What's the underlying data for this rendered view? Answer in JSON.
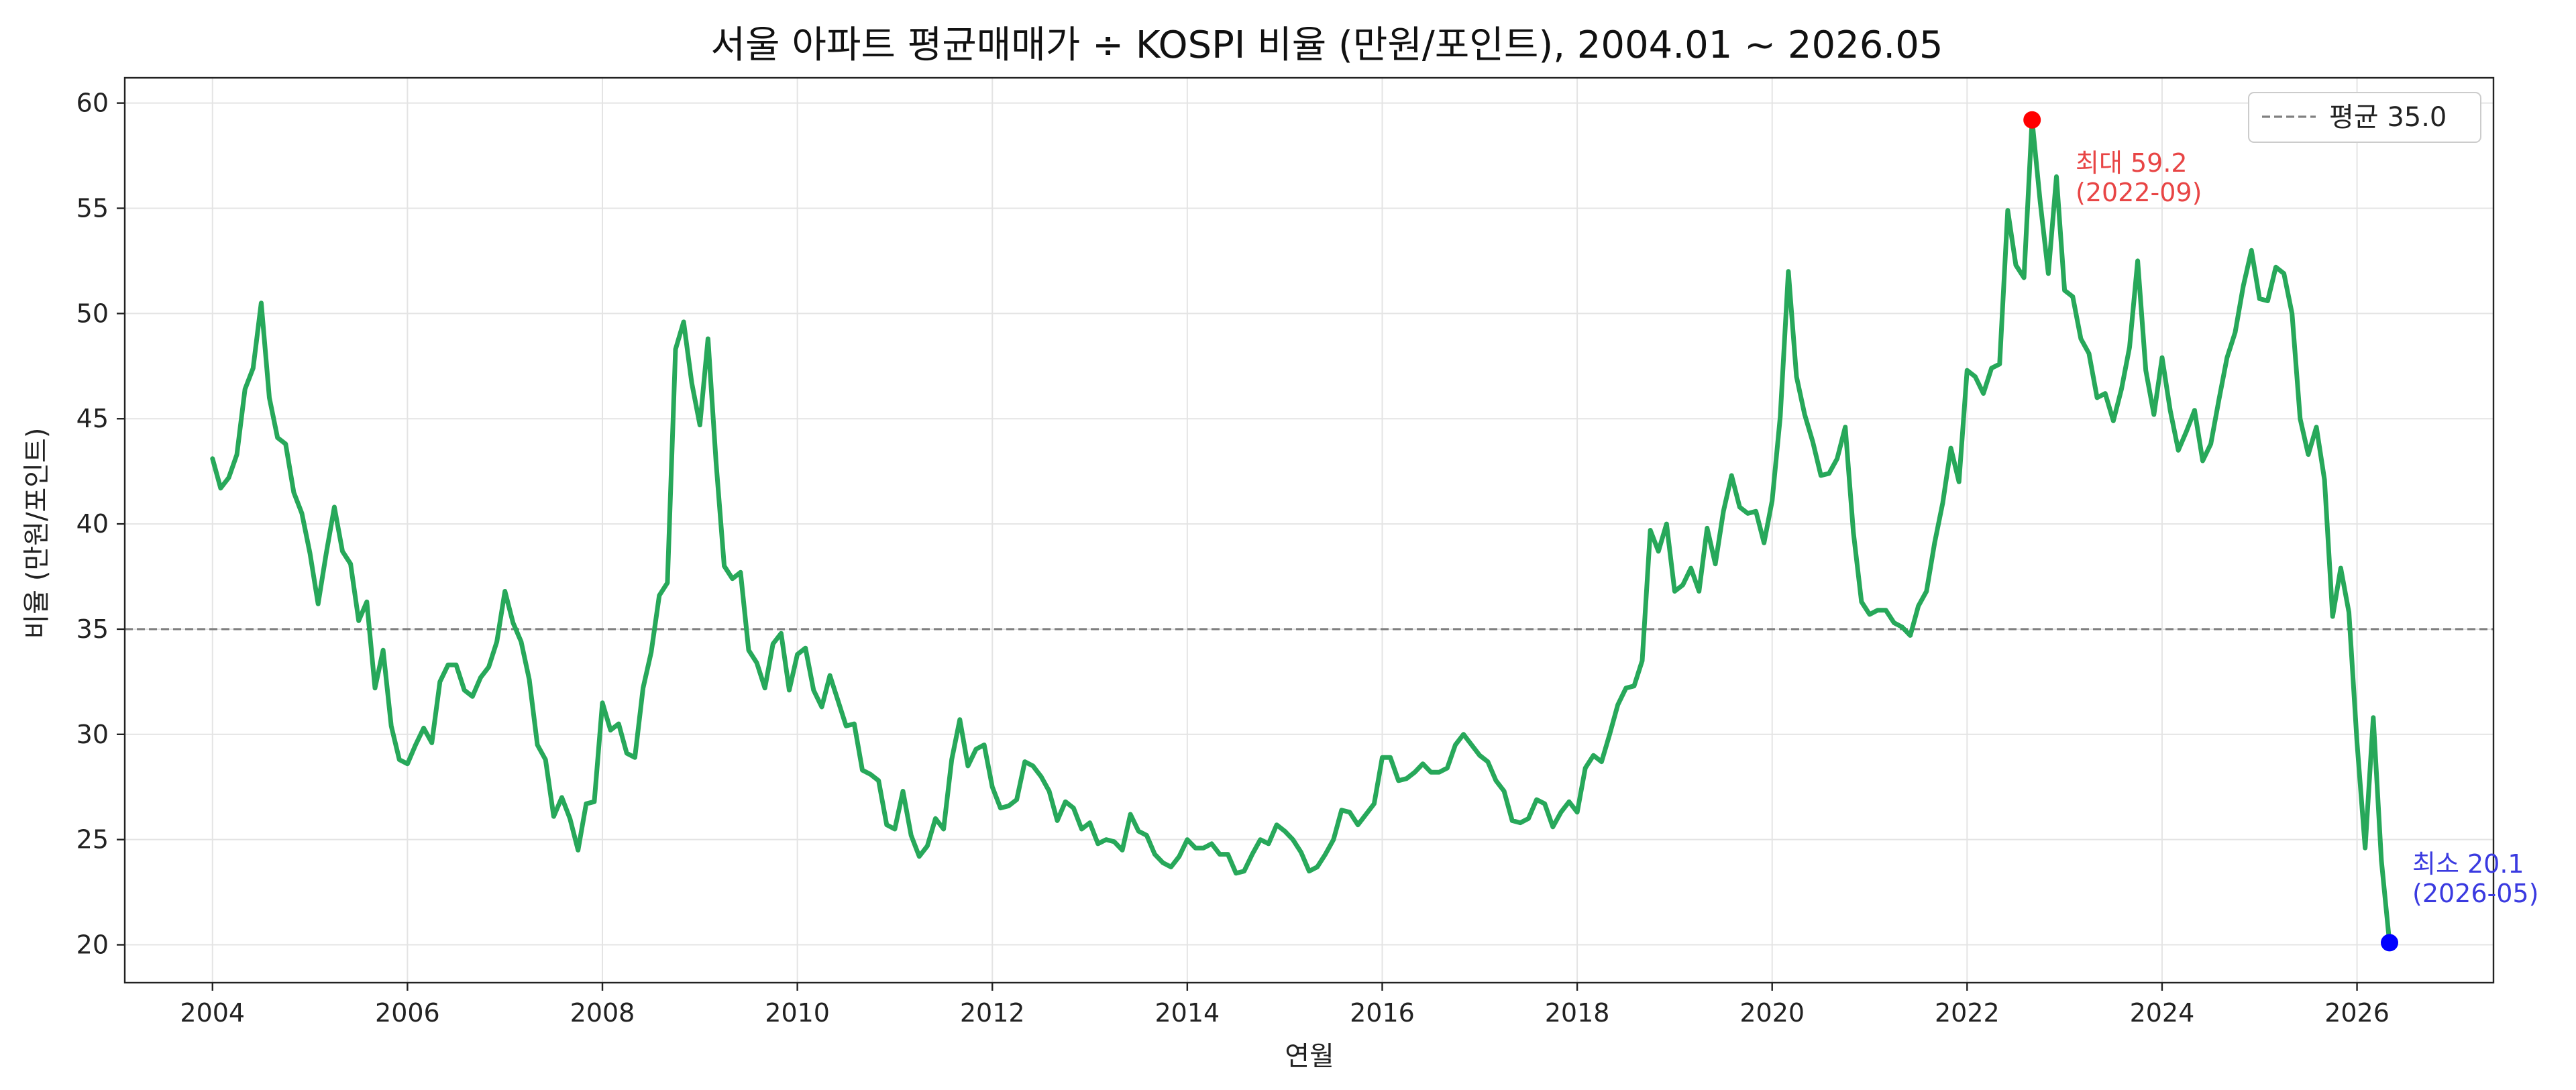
{
  "chart_data": {
    "type": "line",
    "title": "서울 아파트 평균매매가 ÷ KOSPI 비율 (만원/포인트), 2004.01 ~ 2026.05",
    "xlabel": "연월",
    "ylabel": "비율 (만원/포인트)",
    "xlim": [
      2003.1,
      2027.4
    ],
    "ylim": [
      18.2,
      61.2
    ],
    "x_ticks": [
      "2004",
      "2006",
      "2008",
      "2010",
      "2012",
      "2014",
      "2016",
      "2018",
      "2020",
      "2022",
      "2024",
      "2026"
    ],
    "y_ticks": [
      20,
      25,
      30,
      35,
      40,
      45,
      50,
      55,
      60
    ],
    "grid": true,
    "legend_placement": "top-right",
    "reference_line": {
      "label": "평균 35.0",
      "value": 35.0
    },
    "max_point": {
      "x": "2022-09",
      "value": 59.2,
      "label": "최대 59.2",
      "date_label": "(2022-09)"
    },
    "min_point": {
      "x": "2026-05",
      "value": 20.1,
      "label": "최소 20.1",
      "date_label": "(2026-05)"
    },
    "series": [
      {
        "color": "#27a85a",
        "points": [
          [
            "2004-01",
            43.1
          ],
          [
            "2004-02",
            41.7
          ],
          [
            "2004-03",
            42.2
          ],
          [
            "2004-04",
            43.3
          ],
          [
            "2004-05",
            46.4
          ],
          [
            "2004-06",
            47.4
          ],
          [
            "2004-07",
            50.5
          ],
          [
            "2004-08",
            46.0
          ],
          [
            "2004-09",
            44.1
          ],
          [
            "2004-10",
            43.8
          ],
          [
            "2004-11",
            41.5
          ],
          [
            "2004-12",
            40.5
          ],
          [
            "2005-01",
            38.6
          ],
          [
            "2005-02",
            36.2
          ],
          [
            "2005-03",
            38.6
          ],
          [
            "2005-04",
            40.8
          ],
          [
            "2005-05",
            38.7
          ],
          [
            "2005-06",
            38.1
          ],
          [
            "2005-07",
            35.4
          ],
          [
            "2005-08",
            36.3
          ],
          [
            "2005-09",
            32.2
          ],
          [
            "2005-10",
            34.0
          ],
          [
            "2005-11",
            30.4
          ],
          [
            "2005-12",
            28.8
          ],
          [
            "2006-01",
            28.6
          ],
          [
            "2006-02",
            29.5
          ],
          [
            "2006-03",
            30.3
          ],
          [
            "2006-04",
            29.6
          ],
          [
            "2006-05",
            32.5
          ],
          [
            "2006-06",
            33.3
          ],
          [
            "2006-07",
            33.3
          ],
          [
            "2006-08",
            32.1
          ],
          [
            "2006-09",
            31.8
          ],
          [
            "2006-10",
            32.7
          ],
          [
            "2006-11",
            33.2
          ],
          [
            "2006-12",
            34.4
          ],
          [
            "2007-01",
            36.8
          ],
          [
            "2007-02",
            35.3
          ],
          [
            "2007-03",
            34.4
          ],
          [
            "2007-04",
            32.6
          ],
          [
            "2007-05",
            29.5
          ],
          [
            "2007-06",
            28.8
          ],
          [
            "2007-07",
            26.1
          ],
          [
            "2007-08",
            27.0
          ],
          [
            "2007-09",
            26.0
          ],
          [
            "2007-10",
            24.5
          ],
          [
            "2007-11",
            26.7
          ],
          [
            "2007-12",
            26.8
          ],
          [
            "2008-01",
            31.5
          ],
          [
            "2008-02",
            30.2
          ],
          [
            "2008-03",
            30.5
          ],
          [
            "2008-04",
            29.1
          ],
          [
            "2008-05",
            28.9
          ],
          [
            "2008-06",
            32.2
          ],
          [
            "2008-07",
            33.9
          ],
          [
            "2008-08",
            36.6
          ],
          [
            "2008-09",
            37.2
          ],
          [
            "2008-10",
            48.3
          ],
          [
            "2008-11",
            49.6
          ],
          [
            "2008-12",
            46.7
          ],
          [
            "2009-01",
            44.7
          ],
          [
            "2009-02",
            48.8
          ],
          [
            "2009-03",
            42.9
          ],
          [
            "2009-04",
            38.0
          ],
          [
            "2009-05",
            37.4
          ],
          [
            "2009-06",
            37.7
          ],
          [
            "2009-07",
            34.0
          ],
          [
            "2009-08",
            33.4
          ],
          [
            "2009-09",
            32.2
          ],
          [
            "2009-10",
            34.3
          ],
          [
            "2009-11",
            34.8
          ],
          [
            "2009-12",
            32.1
          ],
          [
            "2010-01",
            33.8
          ],
          [
            "2010-02",
            34.1
          ],
          [
            "2010-03",
            32.1
          ],
          [
            "2010-04",
            31.3
          ],
          [
            "2010-05",
            32.8
          ],
          [
            "2010-06",
            31.6
          ],
          [
            "2010-07",
            30.4
          ],
          [
            "2010-08",
            30.5
          ],
          [
            "2010-09",
            28.3
          ],
          [
            "2010-10",
            28.1
          ],
          [
            "2010-11",
            27.8
          ],
          [
            "2010-12",
            25.7
          ],
          [
            "2011-01",
            25.5
          ],
          [
            "2011-02",
            27.3
          ],
          [
            "2011-03",
            25.2
          ],
          [
            "2011-04",
            24.2
          ],
          [
            "2011-05",
            24.7
          ],
          [
            "2011-06",
            26.0
          ],
          [
            "2011-07",
            25.5
          ],
          [
            "2011-08",
            28.8
          ],
          [
            "2011-09",
            30.7
          ],
          [
            "2011-10",
            28.5
          ],
          [
            "2011-11",
            29.3
          ],
          [
            "2011-12",
            29.5
          ],
          [
            "2012-01",
            27.5
          ],
          [
            "2012-02",
            26.5
          ],
          [
            "2012-03",
            26.6
          ],
          [
            "2012-04",
            26.9
          ],
          [
            "2012-05",
            28.7
          ],
          [
            "2012-06",
            28.5
          ],
          [
            "2012-07",
            28.0
          ],
          [
            "2012-08",
            27.3
          ],
          [
            "2012-09",
            25.9
          ],
          [
            "2012-10",
            26.8
          ],
          [
            "2012-11",
            26.5
          ],
          [
            "2012-12",
            25.5
          ],
          [
            "2013-01",
            25.8
          ],
          [
            "2013-02",
            24.8
          ],
          [
            "2013-03",
            25.0
          ],
          [
            "2013-04",
            24.9
          ],
          [
            "2013-05",
            24.5
          ],
          [
            "2013-06",
            26.2
          ],
          [
            "2013-07",
            25.4
          ],
          [
            "2013-08",
            25.2
          ],
          [
            "2013-09",
            24.3
          ],
          [
            "2013-10",
            23.9
          ],
          [
            "2013-11",
            23.7
          ],
          [
            "2013-12",
            24.2
          ],
          [
            "2014-01",
            25.0
          ],
          [
            "2014-02",
            24.6
          ],
          [
            "2014-03",
            24.6
          ],
          [
            "2014-04",
            24.8
          ],
          [
            "2014-05",
            24.3
          ],
          [
            "2014-06",
            24.3
          ],
          [
            "2014-07",
            23.4
          ],
          [
            "2014-08",
            23.5
          ],
          [
            "2014-09",
            24.3
          ],
          [
            "2014-10",
            25.0
          ],
          [
            "2014-11",
            24.8
          ],
          [
            "2014-12",
            25.7
          ],
          [
            "2015-01",
            25.4
          ],
          [
            "2015-02",
            25.0
          ],
          [
            "2015-03",
            24.4
          ],
          [
            "2015-04",
            23.5
          ],
          [
            "2015-05",
            23.7
          ],
          [
            "2015-06",
            24.3
          ],
          [
            "2015-07",
            25.0
          ],
          [
            "2015-08",
            26.4
          ],
          [
            "2015-09",
            26.3
          ],
          [
            "2015-10",
            25.7
          ],
          [
            "2015-11",
            26.2
          ],
          [
            "2015-12",
            26.7
          ],
          [
            "2016-01",
            28.9
          ],
          [
            "2016-02",
            28.9
          ],
          [
            "2016-03",
            27.8
          ],
          [
            "2016-04",
            27.9
          ],
          [
            "2016-05",
            28.2
          ],
          [
            "2016-06",
            28.6
          ],
          [
            "2016-07",
            28.2
          ],
          [
            "2016-08",
            28.2
          ],
          [
            "2016-09",
            28.4
          ],
          [
            "2016-10",
            29.5
          ],
          [
            "2016-11",
            30.0
          ],
          [
            "2016-12",
            29.5
          ],
          [
            "2017-01",
            29.0
          ],
          [
            "2017-02",
            28.7
          ],
          [
            "2017-03",
            27.8
          ],
          [
            "2017-04",
            27.3
          ],
          [
            "2017-05",
            25.9
          ],
          [
            "2017-06",
            25.8
          ],
          [
            "2017-07",
            26.0
          ],
          [
            "2017-08",
            26.9
          ],
          [
            "2017-09",
            26.7
          ],
          [
            "2017-10",
            25.6
          ],
          [
            "2017-11",
            26.3
          ],
          [
            "2017-12",
            26.8
          ],
          [
            "2018-01",
            26.3
          ],
          [
            "2018-02",
            28.4
          ],
          [
            "2018-03",
            29.0
          ],
          [
            "2018-04",
            28.7
          ],
          [
            "2018-05",
            30.0
          ],
          [
            "2018-06",
            31.4
          ],
          [
            "2018-07",
            32.2
          ],
          [
            "2018-08",
            32.3
          ],
          [
            "2018-09",
            33.5
          ],
          [
            "2018-10",
            39.7
          ],
          [
            "2018-11",
            38.7
          ],
          [
            "2018-12",
            40.0
          ],
          [
            "2019-01",
            36.8
          ],
          [
            "2019-02",
            37.1
          ],
          [
            "2019-03",
            37.9
          ],
          [
            "2019-04",
            36.8
          ],
          [
            "2019-05",
            39.8
          ],
          [
            "2019-06",
            38.1
          ],
          [
            "2019-07",
            40.6
          ],
          [
            "2019-08",
            42.3
          ],
          [
            "2019-09",
            40.8
          ],
          [
            "2019-10",
            40.5
          ],
          [
            "2019-11",
            40.6
          ],
          [
            "2019-12",
            39.1
          ],
          [
            "2020-01",
            41.1
          ],
          [
            "2020-02",
            45.1
          ],
          [
            "2020-03",
            52.0
          ],
          [
            "2020-04",
            47.0
          ],
          [
            "2020-05",
            45.2
          ],
          [
            "2020-06",
            43.9
          ],
          [
            "2020-07",
            42.3
          ],
          [
            "2020-08",
            42.4
          ],
          [
            "2020-09",
            43.1
          ],
          [
            "2020-10",
            44.6
          ],
          [
            "2020-11",
            39.6
          ],
          [
            "2020-12",
            36.3
          ],
          [
            "2021-01",
            35.7
          ],
          [
            "2021-02",
            35.9
          ],
          [
            "2021-03",
            35.9
          ],
          [
            "2021-04",
            35.3
          ],
          [
            "2021-05",
            35.1
          ],
          [
            "2021-06",
            34.7
          ],
          [
            "2021-07",
            36.1
          ],
          [
            "2021-08",
            36.8
          ],
          [
            "2021-09",
            39.1
          ],
          [
            "2021-10",
            41.0
          ],
          [
            "2021-11",
            43.6
          ],
          [
            "2021-12",
            42.0
          ],
          [
            "2022-01",
            47.3
          ],
          [
            "2022-02",
            47.0
          ],
          [
            "2022-03",
            46.2
          ],
          [
            "2022-04",
            47.4
          ],
          [
            "2022-05",
            47.6
          ],
          [
            "2022-06",
            54.9
          ],
          [
            "2022-07",
            52.3
          ],
          [
            "2022-08",
            51.7
          ],
          [
            "2022-09",
            59.2
          ],
          [
            "2022-10",
            55.3
          ],
          [
            "2022-11",
            51.9
          ],
          [
            "2022-12",
            56.5
          ],
          [
            "2023-01",
            51.1
          ],
          [
            "2023-02",
            50.8
          ],
          [
            "2023-03",
            48.8
          ],
          [
            "2023-04",
            48.1
          ],
          [
            "2023-05",
            46.0
          ],
          [
            "2023-06",
            46.2
          ],
          [
            "2023-07",
            44.9
          ],
          [
            "2023-08",
            46.4
          ],
          [
            "2023-09",
            48.4
          ],
          [
            "2023-10",
            52.5
          ],
          [
            "2023-11",
            47.3
          ],
          [
            "2023-12",
            45.2
          ],
          [
            "2024-01",
            47.9
          ],
          [
            "2024-02",
            45.4
          ],
          [
            "2024-03",
            43.5
          ],
          [
            "2024-04",
            44.4
          ],
          [
            "2024-05",
            45.4
          ],
          [
            "2024-06",
            43.0
          ],
          [
            "2024-07",
            43.8
          ],
          [
            "2024-08",
            45.9
          ],
          [
            "2024-09",
            47.9
          ],
          [
            "2024-10",
            49.1
          ],
          [
            "2024-11",
            51.3
          ],
          [
            "2024-12",
            53.0
          ],
          [
            "2025-01",
            50.7
          ],
          [
            "2025-02",
            50.6
          ],
          [
            "2025-03",
            52.2
          ],
          [
            "2025-04",
            51.9
          ],
          [
            "2025-05",
            50.0
          ],
          [
            "2025-06",
            45.0
          ],
          [
            "2025-07",
            43.3
          ],
          [
            "2025-08",
            44.6
          ],
          [
            "2025-09",
            42.1
          ],
          [
            "2025-10",
            35.6
          ],
          [
            "2025-11",
            37.9
          ],
          [
            "2025-12",
            35.8
          ],
          [
            "2026-01",
            29.6
          ],
          [
            "2026-02",
            24.6
          ],
          [
            "2026-03",
            30.8
          ],
          [
            "2026-04",
            24.0
          ],
          [
            "2026-05",
            20.1
          ]
        ]
      }
    ]
  }
}
